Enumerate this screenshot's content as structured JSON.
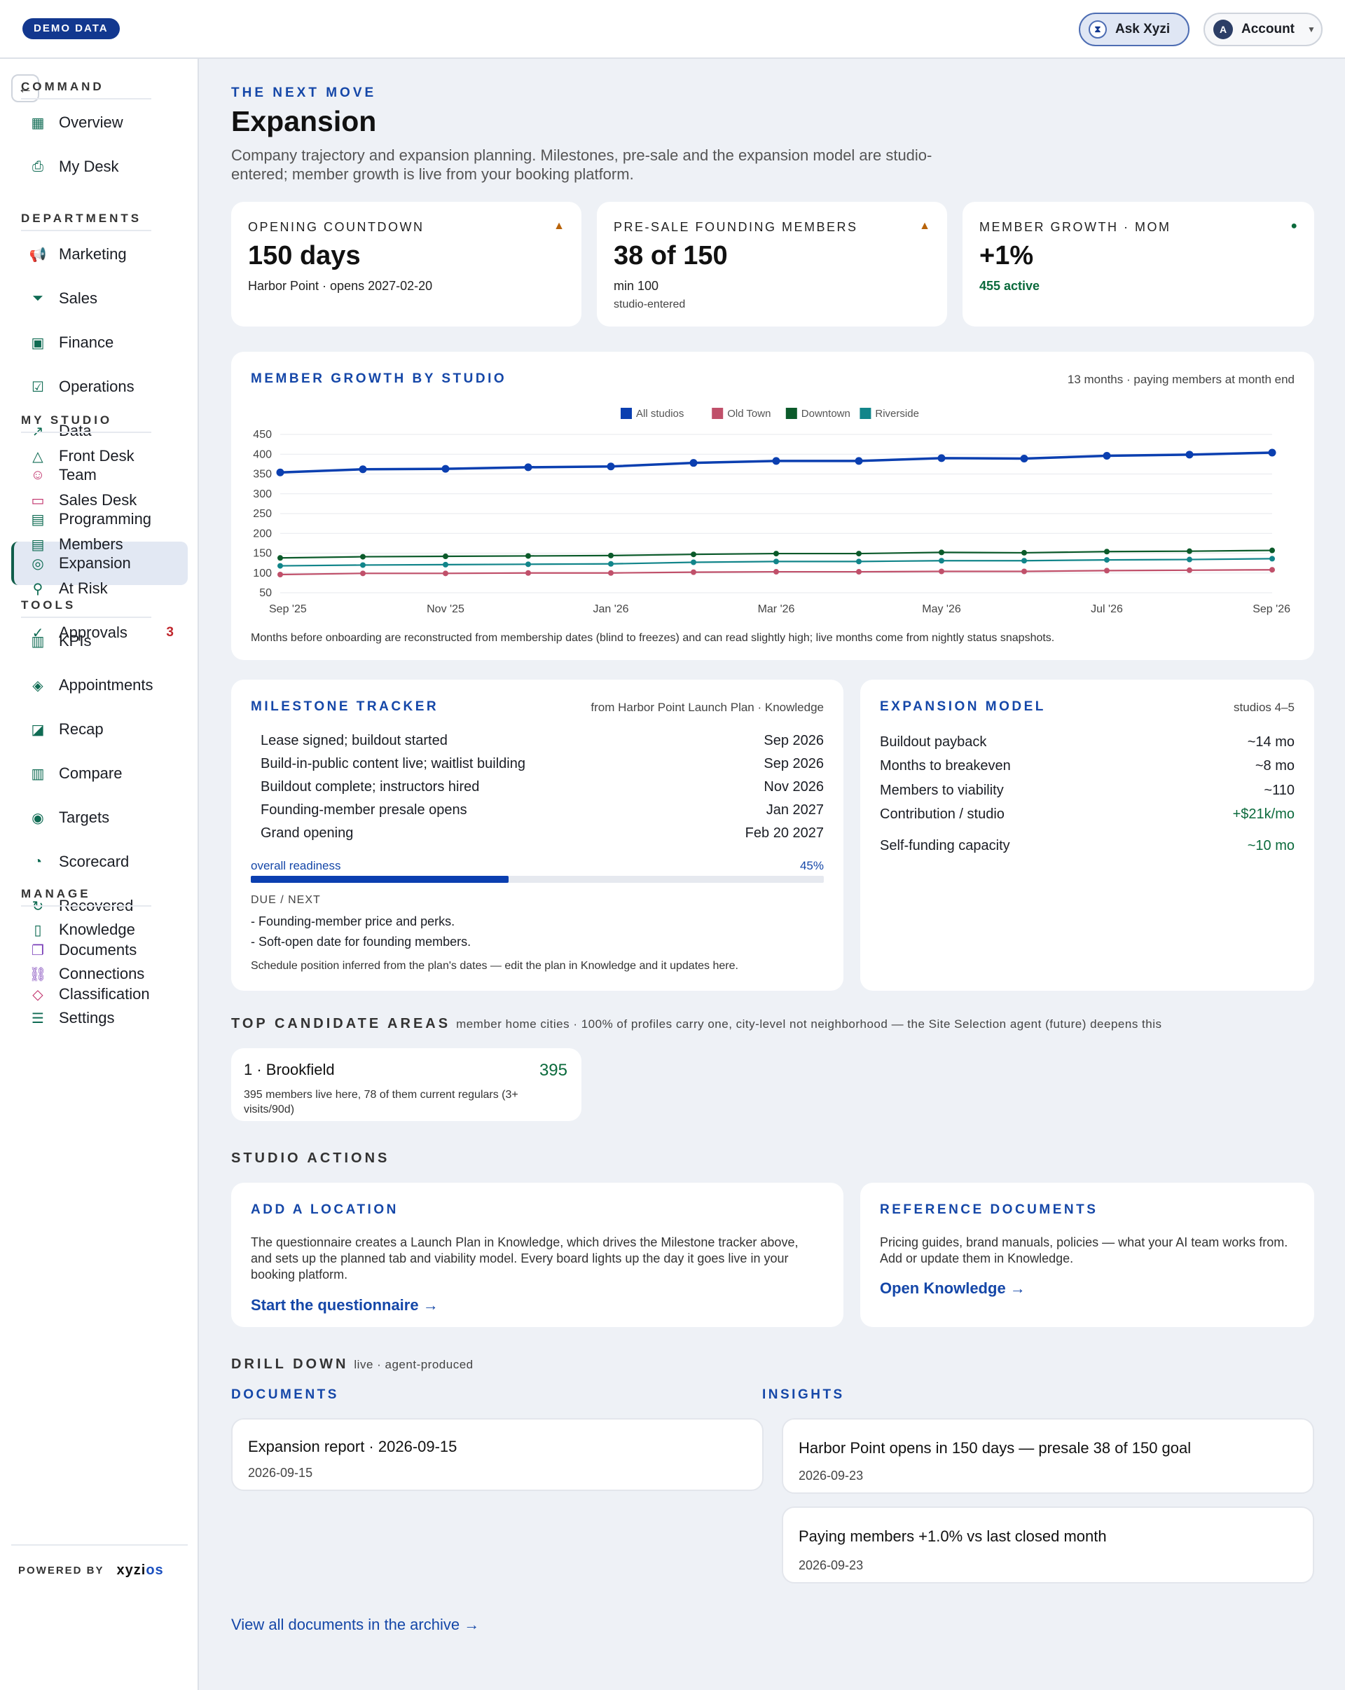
{
  "topbar": {
    "demo_badge": "DEMO DATA",
    "ask_label": "Ask Xyzi",
    "account_label": "Account",
    "account_initial": "A"
  },
  "sidebar": {
    "sections": [
      {
        "label": "COMMAND",
        "items": [
          {
            "label": "Overview",
            "icon": "grid-icon"
          },
          {
            "label": "My Desk",
            "icon": "inbox-icon"
          }
        ]
      },
      {
        "label": "DEPARTMENTS",
        "items": [
          {
            "label": "Marketing",
            "icon": "megaphone-icon"
          },
          {
            "label": "Sales",
            "icon": "funnel-icon"
          },
          {
            "label": "Finance",
            "icon": "cash-icon"
          },
          {
            "label": "Operations",
            "icon": "clipboard-check-icon"
          },
          {
            "label": "Data",
            "icon": "line-chart-icon"
          },
          {
            "label": "Team",
            "icon": "people-icon"
          },
          {
            "label": "Programming",
            "icon": "calendar-icon"
          },
          {
            "label": "Expansion",
            "icon": "compass-icon"
          }
        ]
      },
      {
        "label": "MY STUDIO",
        "items": [
          {
            "label": "Front Desk",
            "icon": "bell-icon"
          },
          {
            "label": "Sales Desk",
            "icon": "chat-icon"
          },
          {
            "label": "Members",
            "icon": "id-card-icon"
          },
          {
            "label": "At Risk",
            "icon": "person-alert-icon"
          },
          {
            "label": "Approvals",
            "icon": "check-circle-icon",
            "badge": "3"
          }
        ]
      },
      {
        "label": "TOOLS",
        "items": [
          {
            "label": "KPIs",
            "icon": "bar-kpi-icon"
          },
          {
            "label": "Appointments",
            "icon": "layers-icon"
          },
          {
            "label": "Recap",
            "icon": "trend-doc-icon"
          },
          {
            "label": "Compare",
            "icon": "bars-icon"
          },
          {
            "label": "Targets",
            "icon": "target-icon"
          },
          {
            "label": "Scorecard",
            "icon": "gauge-icon"
          },
          {
            "label": "Recovered",
            "icon": "recover-icon"
          },
          {
            "label": "Documents",
            "icon": "files-icon"
          },
          {
            "label": "Classification",
            "icon": "tag-icon"
          }
        ]
      },
      {
        "label": "MANAGE",
        "items": [
          {
            "label": "Knowledge",
            "icon": "book-icon"
          },
          {
            "label": "Connections",
            "icon": "link-icon"
          },
          {
            "label": "Settings",
            "icon": "sliders-icon"
          }
        ]
      }
    ],
    "powered_by": "POWERED BY",
    "brand_a": "xyzi",
    "brand_b": "os"
  },
  "page": {
    "eyebrow": "THE NEXT MOVE",
    "title": "Expansion",
    "subtitle": "Company trajectory and expansion planning. Milestones, pre-sale and the expansion model are studio-entered; member growth is live from your booking platform."
  },
  "kpis": [
    {
      "label": "OPENING COUNTDOWN",
      "value": "150 days",
      "sub": "Harbor Point · opens 2027-02-20",
      "sub2": "",
      "mark": "▲",
      "mark_color": "#b8630a"
    },
    {
      "label": "PRE-SALE FOUNDING MEMBERS",
      "value": "38 of 150",
      "sub": "min 100",
      "sub2": "studio-entered",
      "mark": "▲",
      "mark_color": "#b8630a"
    },
    {
      "label": "MEMBER GROWTH · MOM",
      "value": "+1%",
      "sub": "455 active",
      "sub2": "",
      "mark": "●",
      "mark_color": "#0b6a3c"
    }
  ],
  "growth": {
    "title": "MEMBER GROWTH BY STUDIO",
    "meta": "13 months · paying members at month end",
    "footnote": "Months before onboarding are reconstructed from membership dates (blind to freezes) and can read slightly high; live months come from nightly status snapshots."
  },
  "chart_data": {
    "type": "line",
    "x": [
      "Sep '25",
      "Oct '25",
      "Nov '25",
      "Dec '25",
      "Jan '26",
      "Feb '26",
      "Mar '26",
      "Apr '26",
      "May '26",
      "Jun '26",
      "Jul '26",
      "Aug '26",
      "Sep '26"
    ],
    "x_tick_labels": [
      "Sep '25",
      "Nov '25",
      "Jan '26",
      "Mar '26",
      "May '26",
      "Jul '26",
      "Sep '26"
    ],
    "y_ticks": [
      50,
      100,
      150,
      200,
      250,
      300,
      350,
      400,
      450
    ],
    "ylim": [
      50,
      450
    ],
    "grid": true,
    "legend": "top-center",
    "series": [
      {
        "name": "All studios",
        "color": "#0b3fb0",
        "values": [
          354,
          362,
          363,
          367,
          369,
          378,
          383,
          383,
          390,
          389,
          396,
          399,
          404
        ]
      },
      {
        "name": "Old Town",
        "color": "#c0506a",
        "values": [
          96,
          99,
          99,
          100,
          100,
          102,
          103,
          103,
          104,
          104,
          106,
          107,
          108
        ]
      },
      {
        "name": "Downtown",
        "color": "#0b5a2a",
        "values": [
          138,
          141,
          142,
          143,
          144,
          147,
          149,
          149,
          152,
          151,
          154,
          155,
          157
        ]
      },
      {
        "name": "Riverside",
        "color": "#12858a",
        "values": [
          118,
          120,
          121,
          122,
          123,
          127,
          129,
          129,
          131,
          131,
          133,
          134,
          136
        ]
      }
    ]
  },
  "milestones": {
    "title": "MILESTONE TRACKER",
    "meta": "from Harbor Point Launch Plan · Knowledge",
    "rows": [
      {
        "label": "Lease signed; buildout started",
        "date": "Sep 2026"
      },
      {
        "label": "Build-in-public content live; waitlist building",
        "date": "Sep 2026"
      },
      {
        "label": "Buildout complete; instructors hired",
        "date": "Nov 2026"
      },
      {
        "label": "Founding-member presale opens",
        "date": "Jan 2027"
      },
      {
        "label": "Grand opening",
        "date": "Feb 20 2027"
      }
    ],
    "readiness_label": "overall readiness",
    "readiness_value": "45%",
    "readiness_fraction": 0.45,
    "due_label": "DUE / NEXT",
    "due_items": [
      "- Founding-member price and perks.",
      "- Soft-open date for founding members."
    ],
    "footnote": "Schedule position inferred from the plan's dates — edit the plan in Knowledge and it updates here."
  },
  "expansion_model": {
    "title": "EXPANSION MODEL",
    "meta": "studios 4–5",
    "rows": [
      {
        "label": "Buildout payback",
        "value": "~14 mo",
        "green": false
      },
      {
        "label": "Months to breakeven",
        "value": "~8 mo",
        "green": false
      },
      {
        "label": "Members to viability",
        "value": "~110",
        "green": false
      },
      {
        "label": "Contribution / studio",
        "value": "+$21k/mo",
        "green": true
      },
      {
        "label": "Self-funding capacity",
        "value": "~10 mo",
        "green": true
      }
    ]
  },
  "candidates": {
    "title": "TOP CANDIDATE AREAS",
    "meta": "member home cities · 100% of profiles carry one, city-level not neighborhood — the Site Selection agent (future) deepens this",
    "items": [
      {
        "name": "1 · Brookfield",
        "count": "395",
        "detail": "395 members live here, 78 of them current regulars (3+ visits/90d)"
      }
    ]
  },
  "studio_actions": {
    "title": "STUDIO ACTIONS",
    "add_location": {
      "title": "ADD A LOCATION",
      "body": "The questionnaire creates a Launch Plan in Knowledge, which drives the Milestone tracker above, and sets up the planned tab and viability model. Every board lights up the day it goes live in your booking platform.",
      "link": "Start the questionnaire →"
    },
    "reference_docs": {
      "title": "REFERENCE DOCUMENTS",
      "body": "Pricing guides, brand manuals, policies — what your AI team works from. Add or update them in Knowledge.",
      "link": "Open Knowledge →"
    }
  },
  "drill": {
    "title": "DRILL DOWN",
    "meta": "live · agent-produced",
    "documents_title": "DOCUMENTS",
    "documents": [
      {
        "title": "Expansion report · 2026-09-15",
        "date": "2026-09-15"
      }
    ],
    "insights_title": "INSIGHTS",
    "insights": [
      {
        "title": "Harbor Point opens in 150 days — presale 38 of 150 goal",
        "date": "2026-09-23"
      },
      {
        "title": "Paying members +1.0% vs last closed month",
        "date": "2026-09-23"
      }
    ],
    "archive_link": "View all documents in the archive →"
  }
}
